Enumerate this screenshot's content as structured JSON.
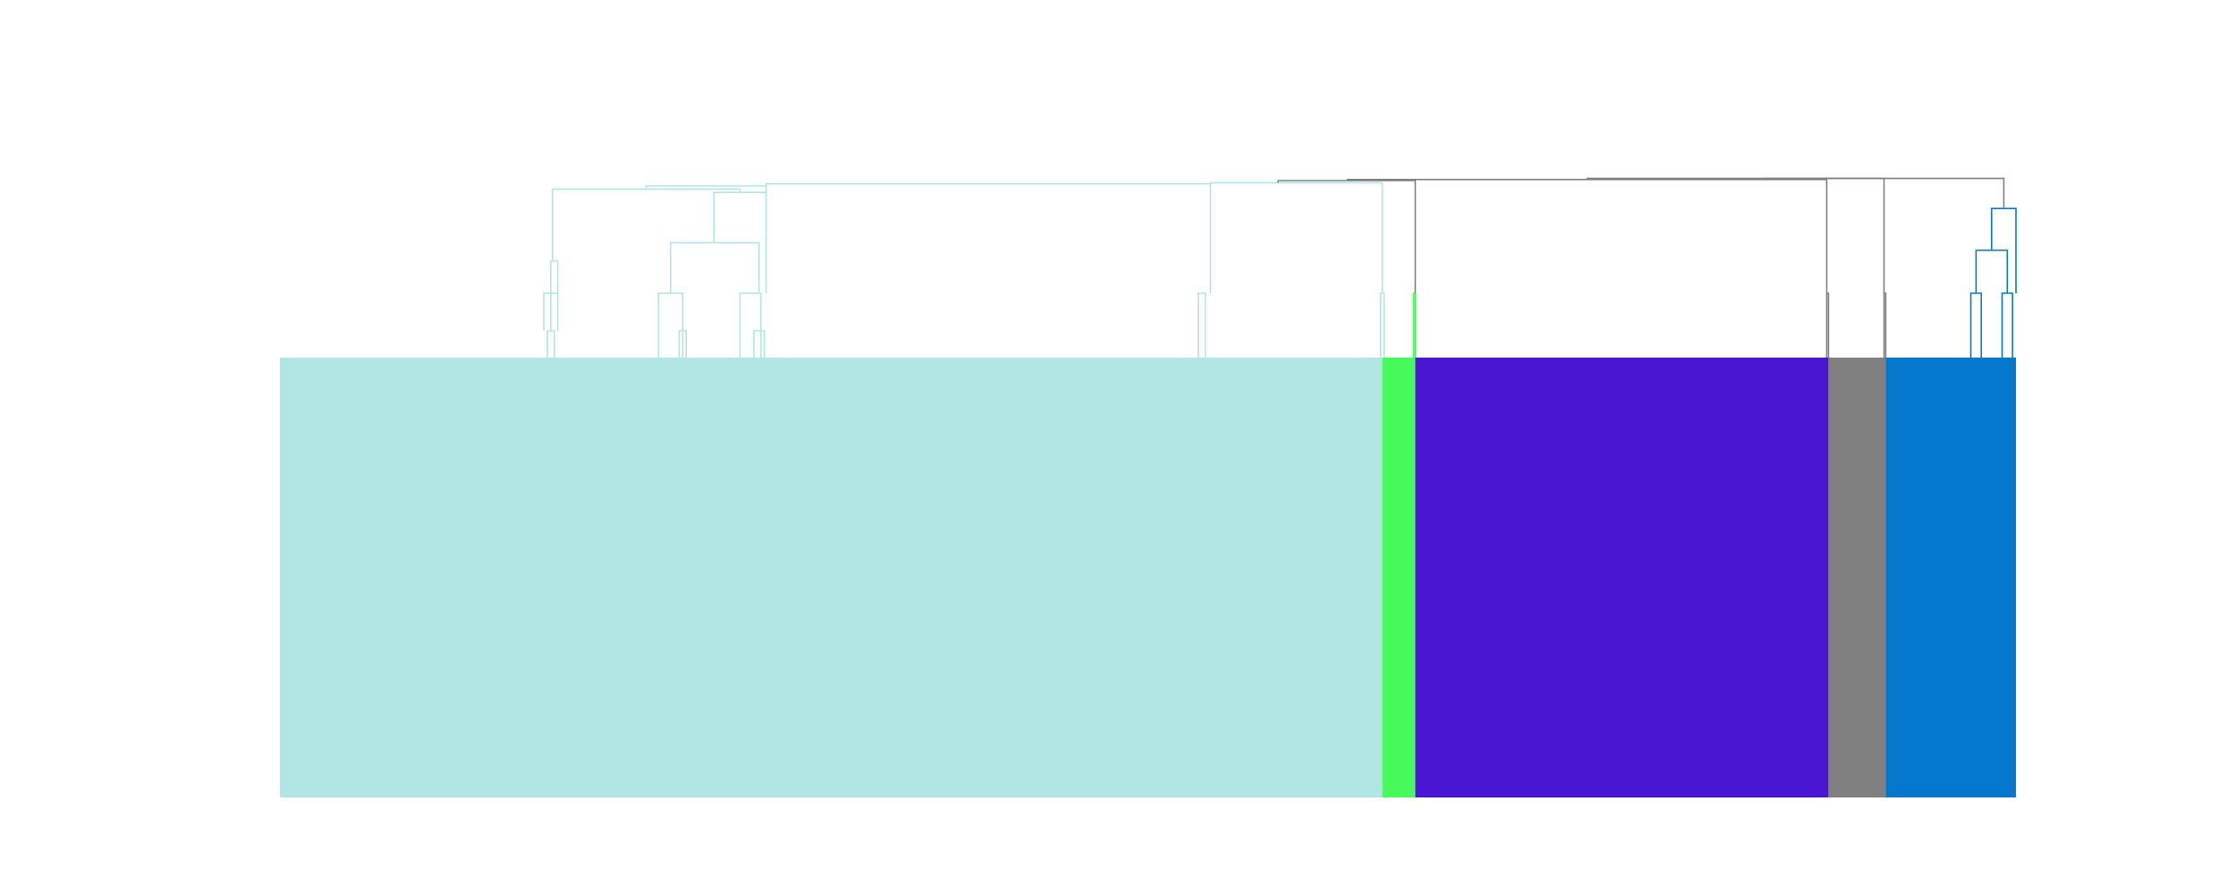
{
  "chart_data": {
    "type": "dendrogram",
    "title": "",
    "xlabel": "",
    "ylabel": "",
    "grid": false,
    "legend": "none",
    "clusters": [
      {
        "color": "#b0e5e3",
        "start": 0.0,
        "end": 0.635
      },
      {
        "color": "#48f95c",
        "start": 0.635,
        "end": 0.654
      },
      {
        "color": "#4a16d2",
        "start": 0.654,
        "end": 0.892
      },
      {
        "color": "#808080",
        "start": 0.892,
        "end": 0.925
      },
      {
        "color": "#0578cd",
        "start": 0.925,
        "end": 1.0
      }
    ],
    "links": [
      {
        "color": "#b0e5e3",
        "x": [
          0.152,
          0.152,
          0.16,
          0.16
        ],
        "y": [
          0.25,
          0.6,
          0.6,
          0.25
        ]
      },
      {
        "color": "#b0e5e3",
        "x": [
          0.154,
          0.154,
          0.158,
          0.158
        ],
        "y": [
          0.0,
          0.25,
          0.25,
          0.0
        ]
      },
      {
        "color": "#b0e5e3",
        "x": [
          0.156,
          0.156,
          0.16,
          0.16
        ],
        "y": [
          0.25,
          0.9,
          0.9,
          0.6
        ]
      },
      {
        "color": "#b0e5e3",
        "x": [
          0.218,
          0.218,
          0.232,
          0.232
        ],
        "y": [
          0.0,
          0.6,
          0.6,
          0.0
        ]
      },
      {
        "color": "#b0e5e3",
        "x": [
          0.23,
          0.23,
          0.234,
          0.234
        ],
        "y": [
          0.0,
          0.25,
          0.25,
          0.0
        ]
      },
      {
        "color": "#b0e5e3",
        "x": [
          0.265,
          0.265,
          0.277,
          0.277
        ],
        "y": [
          0.0,
          0.6,
          0.6,
          0.0
        ]
      },
      {
        "color": "#b0e5e3",
        "x": [
          0.273,
          0.273,
          0.279,
          0.279
        ],
        "y": [
          0.0,
          0.25,
          0.25,
          0.0
        ]
      },
      {
        "color": "#b0e5e3",
        "x": [
          0.225,
          0.225,
          0.276,
          0.276
        ],
        "y": [
          0.6,
          1.07,
          1.07,
          0.6
        ]
      },
      {
        "color": "#b0e5e3",
        "x": [
          0.25,
          0.25,
          0.28,
          0.28
        ],
        "y": [
          1.07,
          1.54,
          1.54,
          0.6
        ]
      },
      {
        "color": "#b0e5e3",
        "x": [
          0.157,
          0.157,
          0.265,
          0.265
        ],
        "y": [
          0.9,
          1.57,
          1.57,
          1.54
        ]
      },
      {
        "color": "#b0e5e3",
        "x": [
          0.529,
          0.529,
          0.533,
          0.533
        ],
        "y": [
          0.0,
          0.6,
          0.6,
          0.0
        ]
      },
      {
        "color": "#b0e5e3",
        "x": [
          0.634,
          0.634,
          0.636,
          0.636
        ],
        "y": [
          0.0,
          0.6,
          0.6,
          0.0
        ]
      },
      {
        "color": "#b0e5e3",
        "x": [
          0.211,
          0.211,
          0.28,
          0.28
        ],
        "y": [
          1.57,
          1.6,
          1.6,
          1.54
        ]
      },
      {
        "color": "#b0e5e3",
        "x": [
          0.28,
          0.28,
          0.536,
          0.536
        ],
        "y": [
          1.54,
          1.62,
          1.62,
          0.6
        ]
      },
      {
        "color": "#b0e5e3",
        "x": [
          0.536,
          0.536,
          0.635,
          0.635
        ],
        "y": [
          1.62,
          1.63,
          1.63,
          0.6
        ]
      },
      {
        "color": "#48f95c",
        "x": [
          0.653,
          0.653,
          0.654,
          0.654
        ],
        "y": [
          0.0,
          0.6,
          0.6,
          0.0
        ]
      },
      {
        "color": "#808080",
        "x": [
          0.575,
          0.575,
          0.654,
          0.654
        ],
        "y": [
          1.63,
          1.65,
          1.65,
          0.6
        ]
      },
      {
        "color": "#808080",
        "x": [
          0.891,
          0.891,
          0.892,
          0.892
        ],
        "y": [
          0.0,
          0.6,
          0.6,
          0.0
        ]
      },
      {
        "color": "#808080",
        "x": [
          0.615,
          0.615,
          0.891,
          0.891
        ],
        "y": [
          1.65,
          1.66,
          1.66,
          0.6
        ]
      },
      {
        "color": "#808080",
        "x": [
          0.924,
          0.924,
          0.925,
          0.925
        ],
        "y": [
          0.0,
          0.6,
          0.6,
          0.0
        ]
      },
      {
        "color": "#808080",
        "x": [
          0.753,
          0.753,
          0.924,
          0.924
        ],
        "y": [
          1.66,
          1.67,
          1.67,
          0.6
        ]
      },
      {
        "color": "#0578cd",
        "x": [
          0.974,
          0.974,
          0.98,
          0.98
        ],
        "y": [
          0.0,
          0.6,
          0.6,
          0.0
        ]
      },
      {
        "color": "#0578cd",
        "x": [
          0.992,
          0.992,
          0.998,
          0.998
        ],
        "y": [
          0.0,
          0.6,
          0.6,
          0.0
        ]
      },
      {
        "color": "#0578cd",
        "x": [
          0.977,
          0.977,
          0.995,
          0.995
        ],
        "y": [
          0.6,
          1.0,
          1.0,
          0.6
        ]
      },
      {
        "color": "#0578cd",
        "x": [
          0.986,
          0.986,
          1.0,
          1.0
        ],
        "y": [
          1.0,
          1.39,
          1.39,
          0.6
        ]
      },
      {
        "color": "#808080",
        "x": [
          0.855,
          0.855,
          0.993,
          0.993
        ],
        "y": [
          1.67,
          1.67,
          1.67,
          1.39
        ]
      }
    ]
  }
}
